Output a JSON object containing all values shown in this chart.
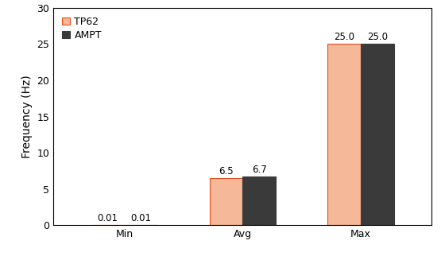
{
  "categories": [
    "Min",
    "Avg",
    "Max"
  ],
  "tp62_values": [
    0.01,
    6.5,
    25.0
  ],
  "ampt_values": [
    0.01,
    6.7,
    25.0
  ],
  "tp62_color": "#F5B899",
  "ampt_color": "#3A3A3A",
  "tp62_edge_color": "#E05020",
  "ampt_edge_color": "#3A3A3A",
  "ylabel": "Frequency (Hz)",
  "ylim": [
    0,
    30
  ],
  "yticks": [
    0,
    5,
    10,
    15,
    20,
    25,
    30
  ],
  "legend_labels": [
    "TP62",
    "AMPT"
  ],
  "bar_width": 0.28,
  "label_fontsize": 8.5,
  "tick_fontsize": 9,
  "legend_fontsize": 9,
  "ylabel_fontsize": 10,
  "figure_width": 5.6,
  "figure_height": 3.22,
  "dpi": 100
}
